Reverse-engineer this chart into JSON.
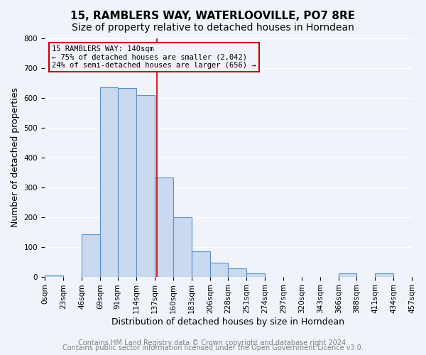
{
  "title": "15, RAMBLERS WAY, WATERLOOVILLE, PO7 8RE",
  "subtitle": "Size of property relative to detached houses in Horndean",
  "xlabel": "Distribution of detached houses by size in Horndean",
  "ylabel": "Number of detached properties",
  "bin_edges": [
    0,
    23,
    46,
    69,
    91,
    114,
    137,
    160,
    183,
    206,
    228,
    251,
    274,
    297,
    320,
    343,
    366,
    388,
    411,
    434,
    457
  ],
  "bin_labels": [
    "0sqm",
    "23sqm",
    "46sqm",
    "69sqm",
    "91sqm",
    "114sqm",
    "137sqm",
    "160sqm",
    "183sqm",
    "206sqm",
    "228sqm",
    "251sqm",
    "274sqm",
    "297sqm",
    "320sqm",
    "343sqm",
    "366sqm",
    "388sqm",
    "411sqm",
    "434sqm",
    "457sqm"
  ],
  "counts": [
    3,
    0,
    143,
    635,
    633,
    610,
    333,
    200,
    84,
    47,
    27,
    12,
    0,
    0,
    0,
    0,
    11,
    0,
    11,
    0
  ],
  "bar_facecolor": "#c9d9f0",
  "bar_edgecolor": "#5b8fc9",
  "vline_x": 140,
  "vline_color": "#cc0000",
  "annotation_title": "15 RAMBLERS WAY: 140sqm",
  "annotation_line1": "← 75% of detached houses are smaller (2,042)",
  "annotation_line2": "24% of semi-detached houses are larger (656) →",
  "annotation_box_edgecolor": "#cc0000",
  "ylim": [
    0,
    800
  ],
  "yticks": [
    0,
    100,
    200,
    300,
    400,
    500,
    600,
    700,
    800
  ],
  "footer_line1": "Contains HM Land Registry data © Crown copyright and database right 2024.",
  "footer_line2": "Contains public sector information licensed under the Open Government Licence v3.0.",
  "background_color": "#f0f4fa",
  "grid_color": "#ffffff",
  "title_fontsize": 11,
  "subtitle_fontsize": 10,
  "axis_label_fontsize": 9,
  "tick_fontsize": 7.5,
  "footer_fontsize": 7
}
